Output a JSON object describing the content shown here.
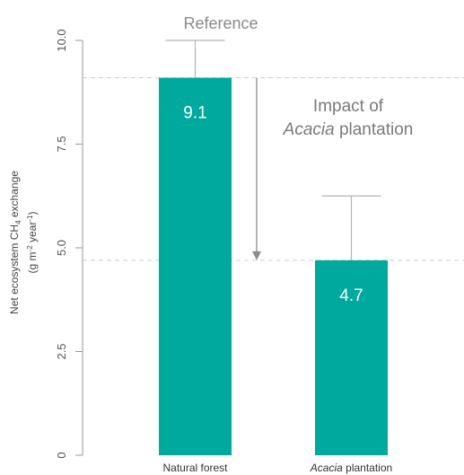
{
  "chart_data": {
    "type": "bar",
    "categories": [
      "Natural forest",
      "Acacia plantation"
    ],
    "category_labels": [
      {
        "italic": "",
        "rest": "Natural forest"
      },
      {
        "italic": "Acacia",
        "rest": " plantation"
      }
    ],
    "values": [
      9.1,
      4.7
    ],
    "error_upper": [
      10.0,
      6.25
    ],
    "data_labels": [
      "9.1",
      "4.7"
    ],
    "yticks": [
      0,
      2.5,
      5.0,
      7.5,
      10.0
    ],
    "ytick_labels": [
      "0",
      "2.5",
      "5.0",
      "7.5",
      "10.0"
    ],
    "ylim": [
      0,
      10.0
    ],
    "ylabel_line1": "Net ecosystem CH",
    "ylabel_sub": "4",
    "ylabel_line1_end": " exchange",
    "ylabel_line2_start": "(g m",
    "ylabel_sup1": "-2",
    "ylabel_line2_mid": " year",
    "ylabel_sup2": "-1",
    "ylabel_line2_end": ")",
    "reference_lines": [
      9.1,
      4.7
    ],
    "annotations": {
      "reference": "Reference",
      "impact_line1": "Impact of",
      "impact_italic": "Acacia",
      "impact_rest": " plantation"
    },
    "grid": false,
    "colors": {
      "bar": "#00a99d",
      "error": "#b3b3b3",
      "refline": "#cccccc",
      "arrow": "#8c8c8c",
      "axis": "#999999"
    }
  }
}
